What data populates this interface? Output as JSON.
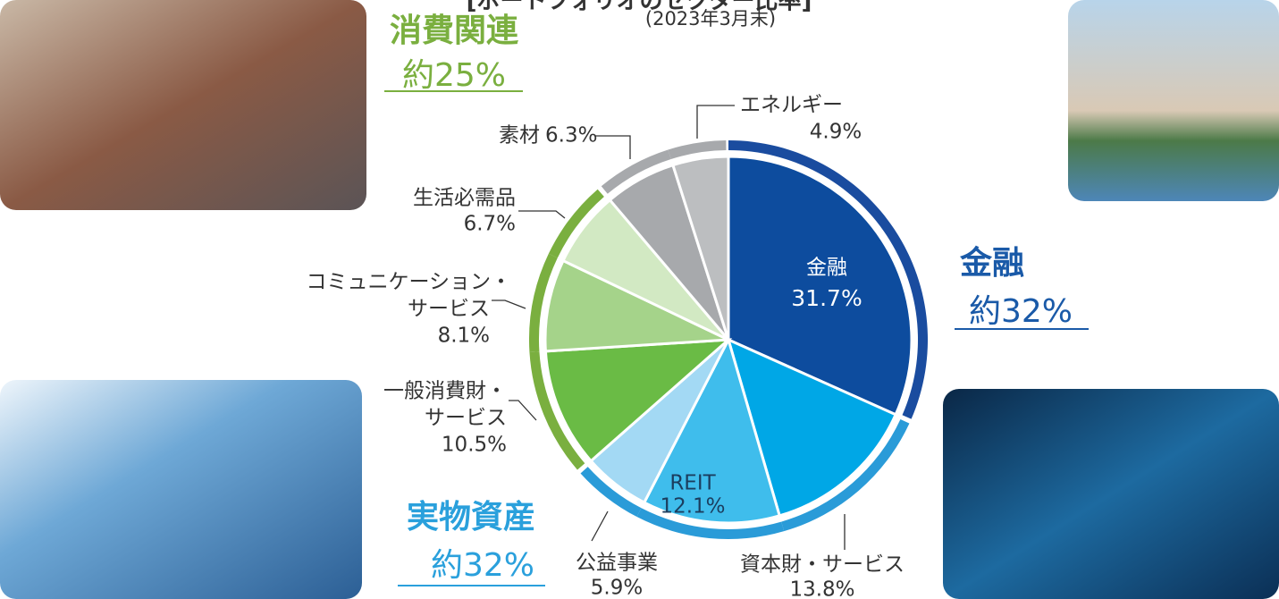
{
  "chart_data": {
    "type": "pie",
    "title": "[ポートフォリオのセクター比率]",
    "subtitle": "(2023年3月末)",
    "categories": [
      [
        "金融"
      ],
      [
        "資本財・サービス"
      ],
      [
        "REIT"
      ],
      [
        "公益事業"
      ],
      [
        "一般消費財・",
        "サービス"
      ],
      [
        "コミュニケーション・",
        "サービス"
      ],
      [
        "生活必需品"
      ],
      [
        "素材"
      ],
      [
        "エネルギー"
      ]
    ],
    "values": [
      31.7,
      13.8,
      12.1,
      5.9,
      10.5,
      8.1,
      6.7,
      6.3,
      4.9
    ],
    "value_labels": [
      "31.7%",
      "13.8%",
      "12.1%",
      "5.9%",
      "10.5%",
      "8.1%",
      "6.7%",
      "6.3%",
      "4.9%"
    ],
    "colors": [
      "#0d4c9e",
      "#00a7e6",
      "#3fbdec",
      "#a3d9f4",
      "#6abb45",
      "#a5d38a",
      "#d2e9c3",
      "#a7a9ac",
      "#bcbec0"
    ],
    "ring_colors": [
      "#1a4c9f",
      "#2a9bd8",
      "#2a9bd8",
      "#2a9bd8",
      "#7aaf3f",
      "#7aaf3f",
      "#7aaf3f",
      "#a7a9ac",
      "#a7a9ac"
    ],
    "annotations": [
      {
        "text": "消費関連",
        "sub": "約25%",
        "color": "#7aaf3f"
      },
      {
        "text": "金融",
        "sub": "約32%",
        "color": "#1a5aa8"
      },
      {
        "text": "実物資産",
        "sub": "約32%",
        "color": "#2aa0dc"
      }
    ]
  }
}
